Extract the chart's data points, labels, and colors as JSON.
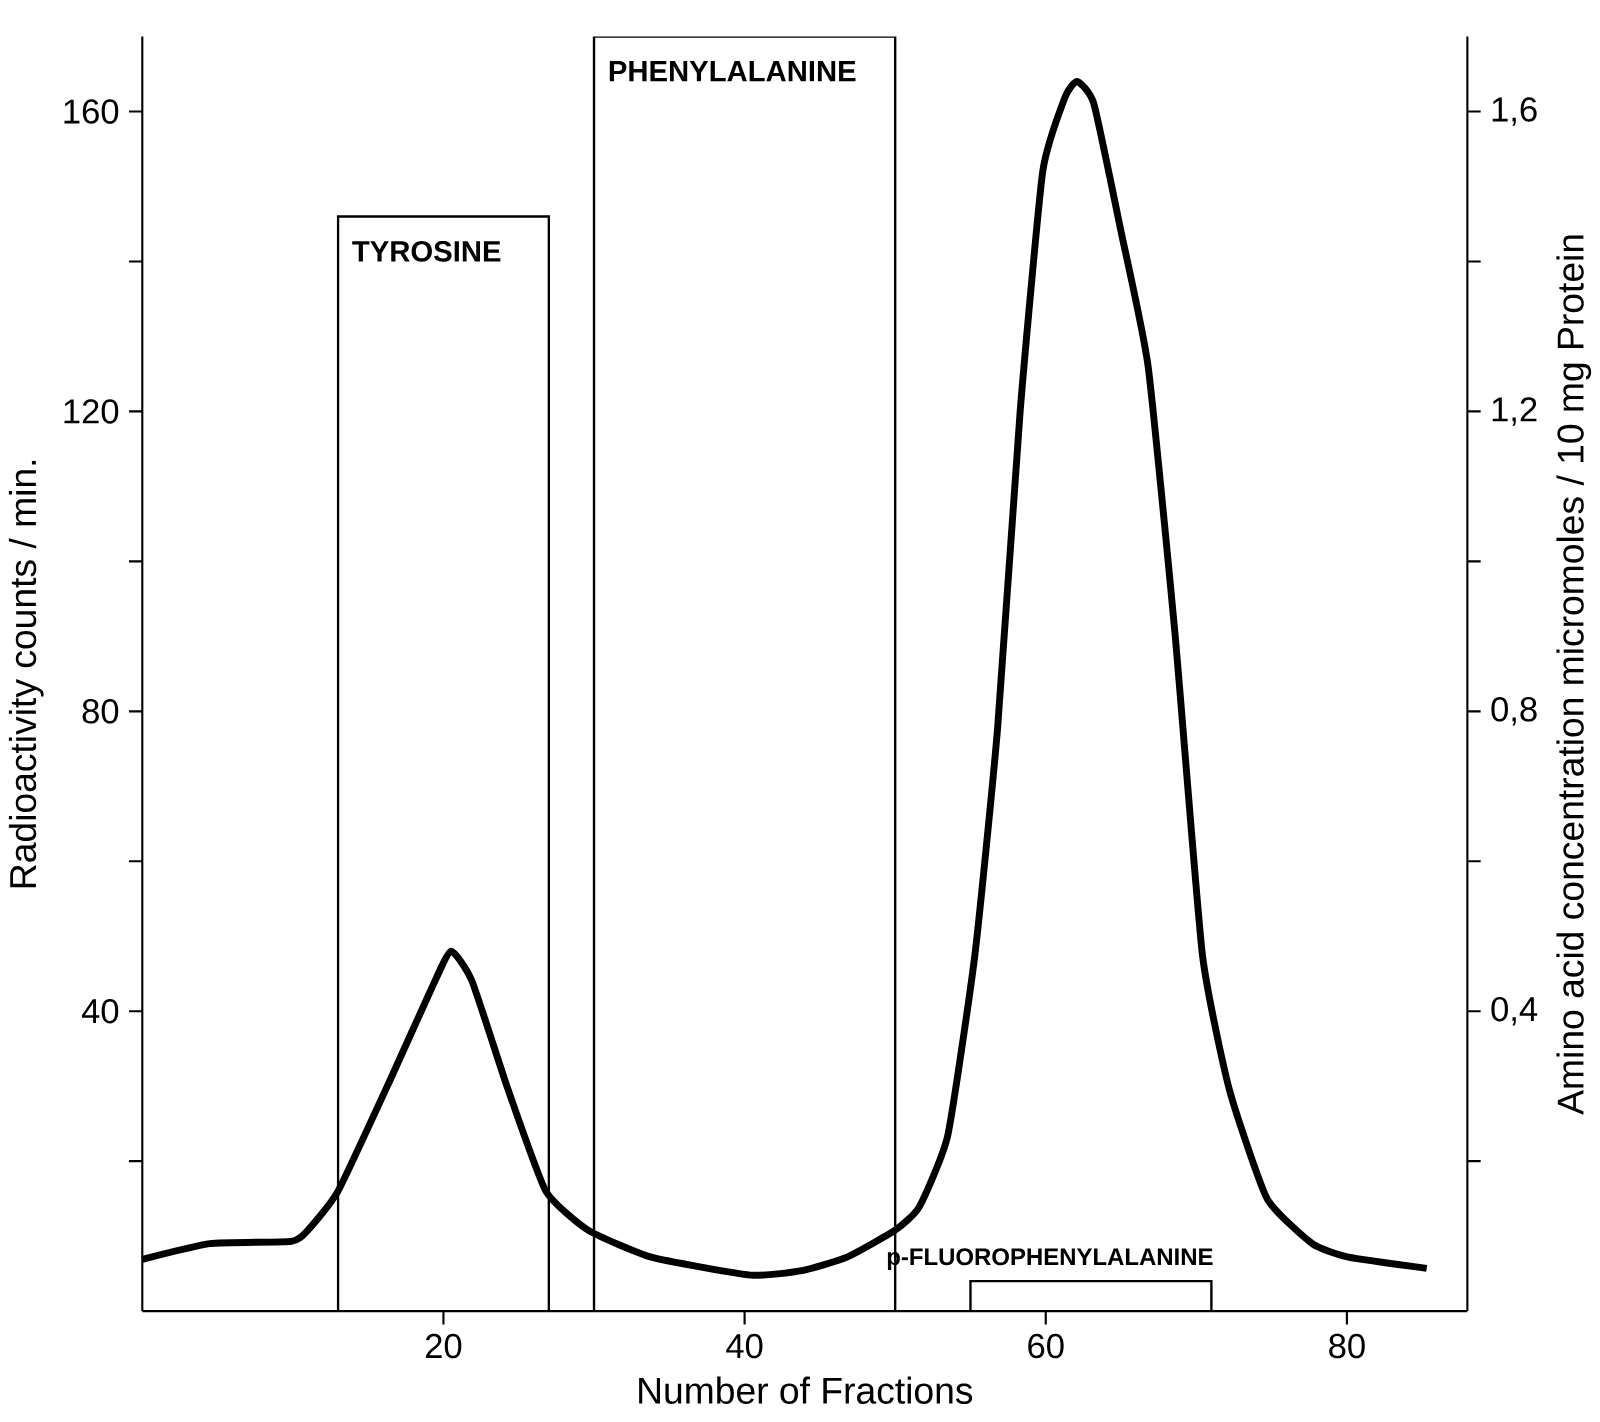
{
  "chart_data": {
    "type": "line",
    "xlabel": "Number of Fractions",
    "ylabel": "Radioactivity counts / min.",
    "y2label": "Amino acid concentration micromoles / 10 mg Protein",
    "xlim": [
      0,
      88
    ],
    "xticks": [
      20,
      40,
      60,
      80
    ],
    "ylim": [
      0,
      170
    ],
    "yticks": [
      {
        "value": 20,
        "label": null
      },
      40,
      {
        "value": 60,
        "label": null
      },
      80,
      {
        "value": 100,
        "label": null
      },
      120,
      {
        "value": 140,
        "label": null
      },
      160
    ],
    "y2lim": [
      0,
      1.7
    ],
    "y2ticks": [
      {
        "value": 0.2,
        "label": null
      },
      {
        "value": 0.4,
        "label": "0,4"
      },
      {
        "value": 0.6,
        "label": null
      },
      {
        "value": 0.8,
        "label": "0,8"
      },
      {
        "value": 1.0,
        "label": null
      },
      {
        "value": 1.2,
        "label": "1,2"
      },
      {
        "value": 1.4,
        "label": null
      },
      {
        "value": 1.6,
        "label": "1,6"
      }
    ],
    "grid": false,
    "marker": "none",
    "line_style": "solid",
    "series": [
      {
        "color": "#000000",
        "x": [
          0,
          4.5,
          9.9,
          11,
          13,
          16.5,
          19.2,
          20.5,
          21.9,
          24.3,
          26.8,
          29.6,
          33.8,
          40.4,
          43.8,
          46.8,
          50,
          51.6,
          53.5,
          55.3,
          56.8,
          58.3,
          59.8,
          61.3,
          62.1,
          63.2,
          65,
          66.8,
          68.6,
          70.4,
          72.2,
          74.7,
          77.7,
          80.1,
          85.3
        ],
        "values": [
          6.9,
          9,
          9.3,
          10.8,
          16,
          31,
          43,
          48,
          44,
          29.5,
          16,
          10.8,
          7.2,
          4.8,
          5.4,
          7.2,
          10.8,
          13.9,
          23.5,
          47.6,
          77.7,
          120,
          152,
          162,
          164,
          161,
          144,
          126,
          90,
          47.6,
          29.5,
          15,
          9,
          7.2,
          5.7
        ]
      },
      {
        "type": "histogram",
        "axis": "y2",
        "color": "#000000",
        "bins": [
          13,
          27,
          30,
          50,
          55,
          71
        ],
        "values": [
          1.46,
          null,
          1.7,
          null,
          0.04
        ]
      }
    ],
    "annotations": [
      "TYROSINE",
      "PHENYLALANINE",
      "p-FLUOROPHENYLALANINE"
    ]
  }
}
